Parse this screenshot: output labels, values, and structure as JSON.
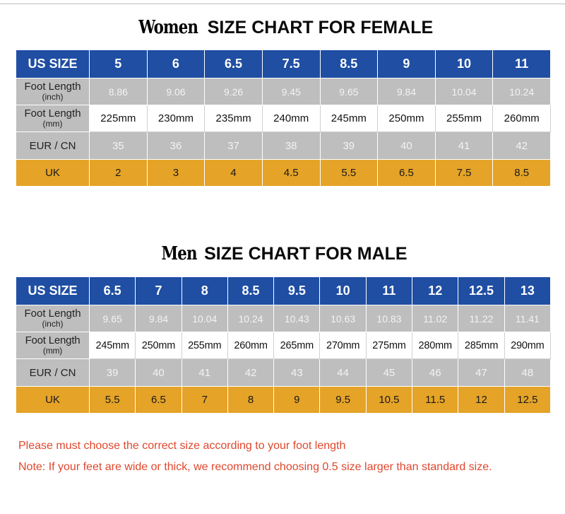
{
  "women": {
    "title_lead": "Women",
    "title_main": "SIZE CHART FOR FEMALE",
    "headers": {
      "us": "US SIZE",
      "inch_main": "Foot Length",
      "inch_sub": "(inch)",
      "mm_main": "Foot Length",
      "mm_sub": "(mm)",
      "eur": "EUR / CN",
      "uk": "UK"
    },
    "us": [
      "5",
      "6",
      "6.5",
      "7.5",
      "8.5",
      "9",
      "10",
      "11"
    ],
    "inch": [
      "8.86",
      "9.06",
      "9.26",
      "9.45",
      "9.65",
      "9.84",
      "10.04",
      "10.24"
    ],
    "mm": [
      "225mm",
      "230mm",
      "235mm",
      "240mm",
      "245mm",
      "250mm",
      "255mm",
      "260mm"
    ],
    "eur": [
      "35",
      "36",
      "37",
      "38",
      "39",
      "40",
      "41",
      "42"
    ],
    "uk": [
      "2",
      "3",
      "4",
      "4.5",
      "5.5",
      "6.5",
      "7.5",
      "8.5"
    ]
  },
  "men": {
    "title_lead": "Men",
    "title_main": "SIZE CHART FOR MALE",
    "headers": {
      "us": "US SIZE",
      "inch_main": "Foot Length",
      "inch_sub": "(inch)",
      "mm_main": "Foot Length",
      "mm_sub": "(mm)",
      "eur": "EUR / CN",
      "uk": "UK"
    },
    "us": [
      "6.5",
      "7",
      "8",
      "8.5",
      "9.5",
      "10",
      "11",
      "12",
      "12.5",
      "13"
    ],
    "inch": [
      "9.65",
      "9.84",
      "10.04",
      "10.24",
      "10.43",
      "10.63",
      "10.83",
      "11.02",
      "11.22",
      "11.41"
    ],
    "mm": [
      "245mm",
      "250mm",
      "255mm",
      "260mm",
      "265mm",
      "270mm",
      "275mm",
      "280mm",
      "285mm",
      "290mm"
    ],
    "eur": [
      "39",
      "40",
      "41",
      "42",
      "43",
      "44",
      "45",
      "46",
      "47",
      "48"
    ],
    "uk": [
      "5.5",
      "6.5",
      "7",
      "8",
      "9",
      "9.5",
      "10.5",
      "11.5",
      "12",
      "12.5"
    ]
  },
  "notes": {
    "line1": "Please must choose the correct size  according to your foot length",
    "line2": "Note: If your feet are wide or thick, we recommend choosing 0.5 size larger than standard size."
  },
  "colors": {
    "header_blue": "#1f4ea3",
    "row_gray": "#bebebe",
    "uk_orange": "#e5a327",
    "note_red": "#e0472d"
  }
}
